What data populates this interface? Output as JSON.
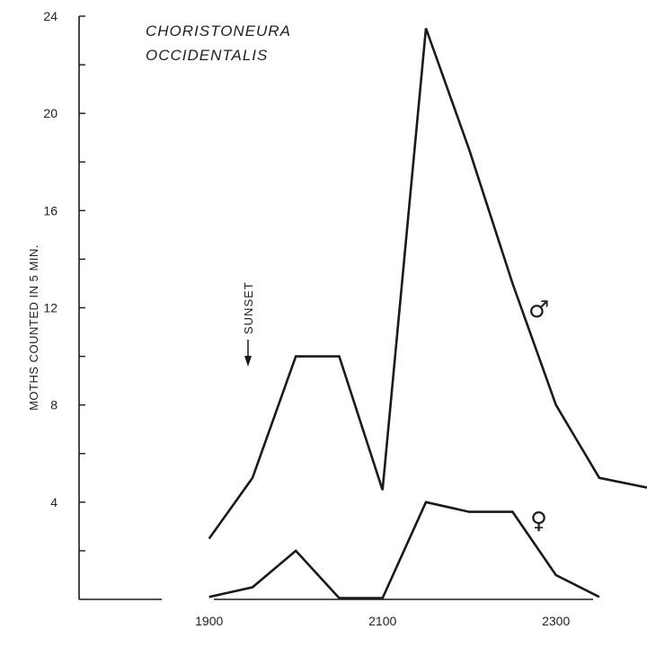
{
  "chart_data": {
    "type": "line",
    "title": [
      "CHORISTONEURA",
      "OCCIDENTALIS"
    ],
    "ylabel": "MOTHS COUNTED IN 5 MIN.",
    "xlabel": "",
    "xlim": [
      1750,
      2405
    ],
    "ylim": [
      0,
      24
    ],
    "x_ticks": [
      1900,
      2100,
      2300
    ],
    "y_ticks": [
      4,
      8,
      12,
      16,
      20,
      24
    ],
    "grid": false,
    "series": [
      {
        "name": "♂",
        "x": [
          1900,
          1950,
          2000,
          2050,
          2100,
          2150,
          2200,
          2250,
          2300,
          2350,
          2405
        ],
        "values": [
          2.5,
          5.0,
          10.0,
          10.0,
          4.5,
          23.5,
          18.5,
          13.0,
          8.0,
          5.0,
          4.6
        ]
      },
      {
        "name": "♀",
        "x": [
          1900,
          1950,
          2000,
          2050,
          2100,
          2150,
          2200,
          2250,
          2300,
          2350
        ],
        "values": [
          0.1,
          0.5,
          2.0,
          0.05,
          0.05,
          4.0,
          3.6,
          3.6,
          1.0,
          0.1
        ]
      }
    ],
    "annotations": [
      {
        "text": "SUNSET",
        "arrow": "down",
        "x": 1980
      }
    ]
  }
}
